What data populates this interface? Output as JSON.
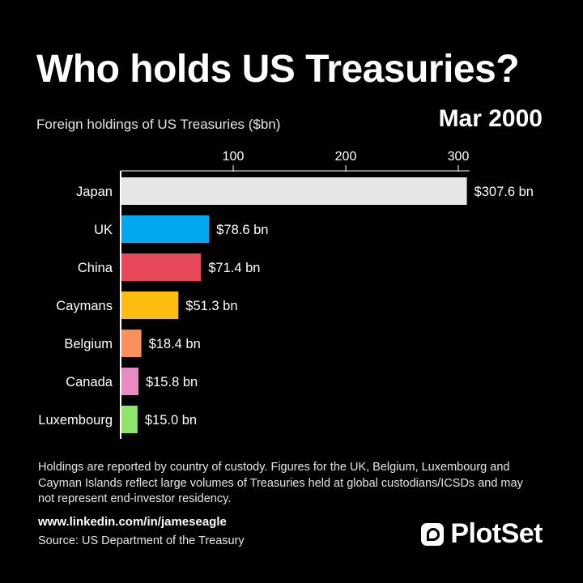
{
  "header": {
    "title": "Who holds US Treasuries?",
    "subtitle": "Foreign holdings of US Treasuries ($bn)",
    "date": "Mar 2000"
  },
  "chart_data": {
    "type": "bar",
    "orientation": "horizontal",
    "xlim": [
      0,
      310
    ],
    "x_ticks": [
      100,
      200,
      300
    ],
    "categories": [
      "Japan",
      "UK",
      "China",
      "Caymans",
      "Belgium",
      "Canada",
      "Luxembourg"
    ],
    "values": [
      307.6,
      78.6,
      71.4,
      51.3,
      18.4,
      15.8,
      15.0
    ],
    "value_labels": [
      "$307.6 bn",
      "$78.6 bn",
      "$71.4 bn",
      "$51.3 bn",
      "$18.4 bn",
      "$15.8 bn",
      "$15.0 bn"
    ],
    "colors": [
      "#e6e6e6",
      "#00a9ef",
      "#e8495a",
      "#fbbd0f",
      "#f8925a",
      "#e98ac4",
      "#8fe46a"
    ],
    "grid": false
  },
  "footer": {
    "note": "Holdings are reported by country of custody. Figures for the UK, Belgium, Luxembourg and Cayman Islands reflect large volumes of Treasuries held at global custodians/ICSDs and may not represent end-investor residency.",
    "link": "www.linkedin.com/in/jameseagle",
    "source": "Source: US Department of the Treasury"
  },
  "brand": {
    "name": "PlotSet",
    "icon": "plotset-logo-icon"
  }
}
